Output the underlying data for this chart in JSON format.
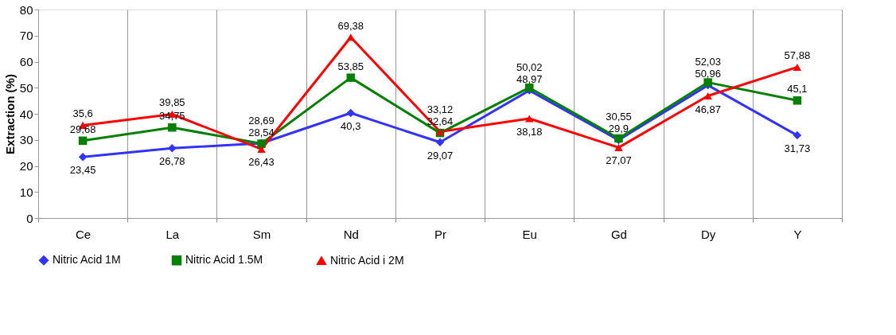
{
  "chart_data": {
    "type": "line",
    "ylabel": "Extraction (%)",
    "categories": [
      "Ce",
      "La",
      "Sm",
      "Nd",
      "Pr",
      "Eu",
      "Gd",
      "Dy",
      "Y"
    ],
    "series": [
      {
        "name": "Nitric Acid 1M",
        "color": "#3333ff",
        "marker": "diamond",
        "values": [
          23.45,
          26.78,
          28.69,
          40.3,
          29.07,
          48.97,
          29.9,
          50.96,
          31.73
        ],
        "value_labels": [
          "23,45",
          "26,78",
          "28,69",
          "40,3",
          "29,07",
          "48,97",
          "29,9",
          "50,96",
          "31,73"
        ]
      },
      {
        "name": "Nitric Acid  1.5M",
        "color": "#008000",
        "marker": "square",
        "values": [
          29.68,
          34.75,
          28.54,
          53.85,
          32.64,
          50.02,
          30.55,
          52.03,
          45.1
        ],
        "value_labels": [
          "29,68",
          "34,75",
          "28,54",
          "53,85",
          "32,64",
          "50,02",
          "30,55",
          "52,03",
          "45,1"
        ]
      },
      {
        "name": "Nitric Acid i 2M",
        "color": "#ff0000",
        "marker": "triangle",
        "values": [
          35.6,
          39.85,
          26.43,
          69.38,
          33.12,
          38.18,
          27.07,
          46.87,
          57.88
        ],
        "value_labels": [
          "35,6",
          "39,85",
          "26,43",
          "69,38",
          "33,12",
          "38,18",
          "27,07",
          "46,87",
          "57,88"
        ]
      }
    ],
    "ylim": [
      0,
      80
    ],
    "yticks": [
      0,
      10,
      20,
      30,
      40,
      50,
      60,
      70,
      80
    ],
    "grid": "x",
    "legend": "bottom"
  }
}
